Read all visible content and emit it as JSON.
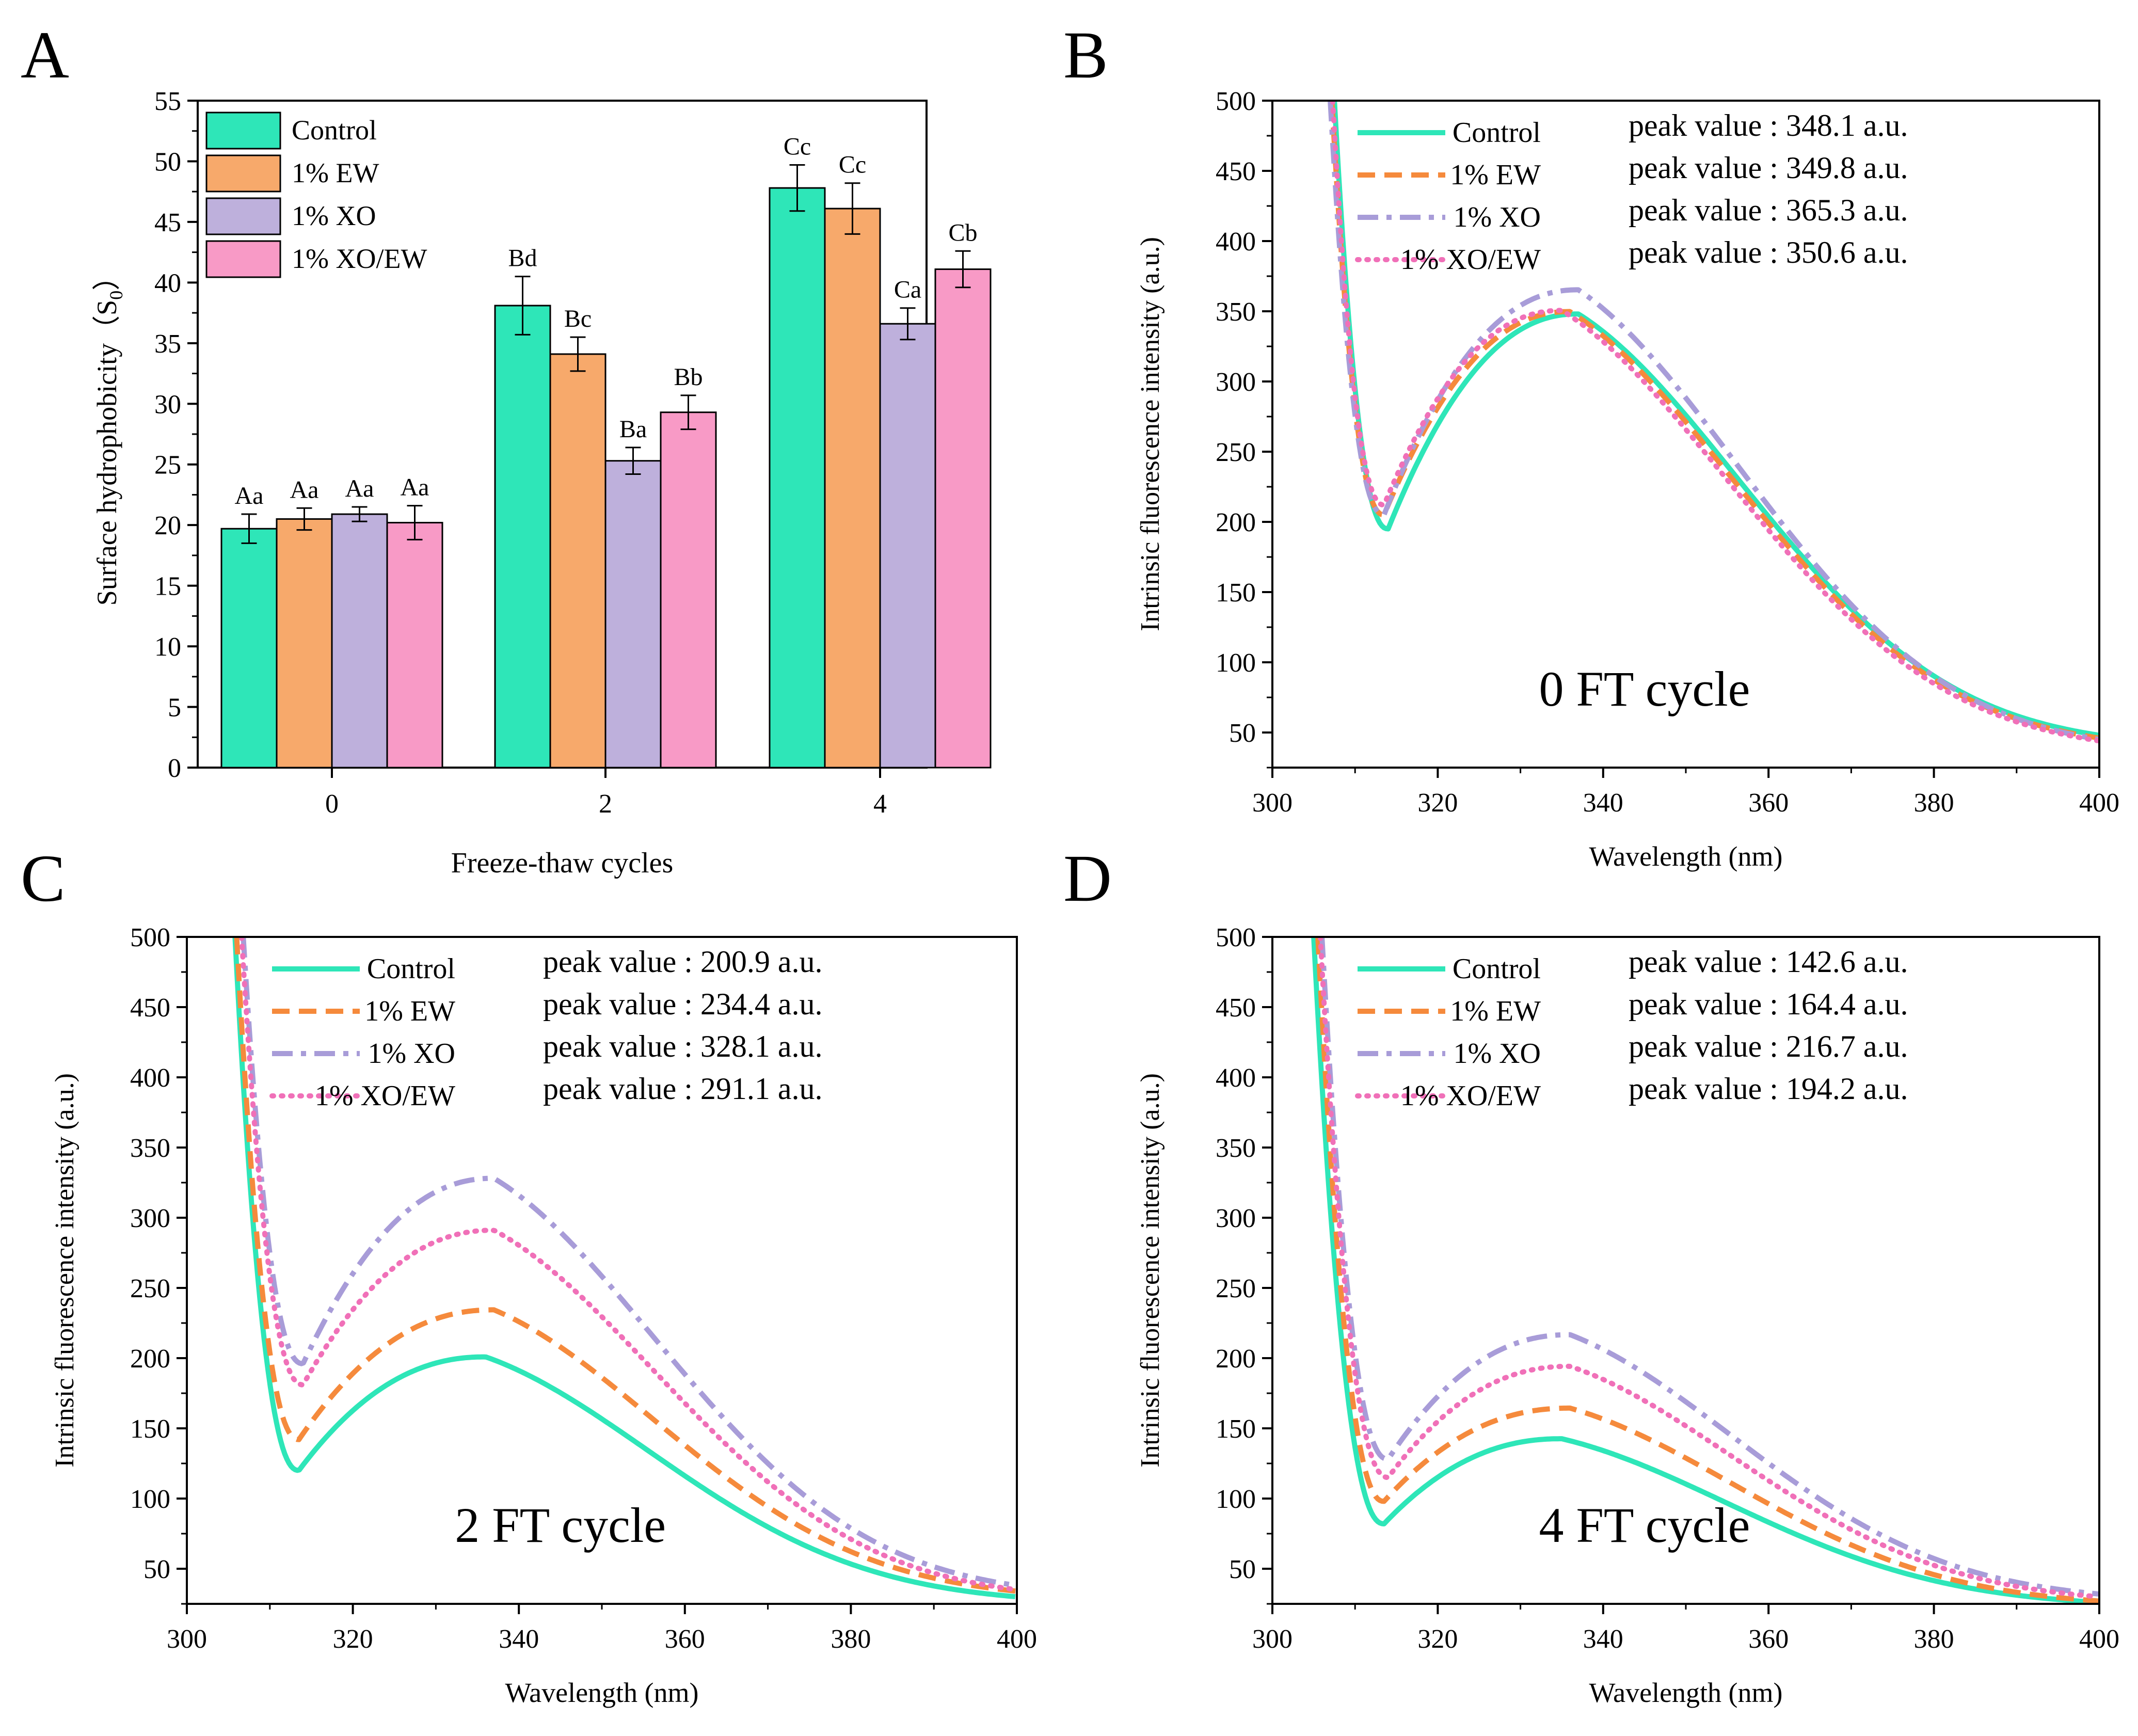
{
  "figure": {
    "panel_letters": [
      "A",
      "B",
      "C",
      "D"
    ]
  },
  "colors": {
    "control": "#2EE6B8",
    "ew": "#F7A96B",
    "xo": "#BEB0DC",
    "xoew": "#F89AC6",
    "ew_line": "#F58A3C",
    "xo_line": "#A89CD8",
    "xoew_line": "#F070B8"
  },
  "chart_data": [
    {
      "panel": "A",
      "type": "bar",
      "title": "",
      "xlabel": "Freeze-thaw cycles",
      "ylabel_main": "Surface hydrophobicity（S",
      "ylabel_sub": "0",
      "ylabel_close": "）",
      "categories": [
        "0",
        "2",
        "4"
      ],
      "ylim": [
        0,
        55
      ],
      "yticks": [
        "0",
        "5",
        "10",
        "15",
        "20",
        "25",
        "30",
        "35",
        "40",
        "45",
        "50",
        "55"
      ],
      "legend_position": "top-left",
      "series": [
        {
          "name": "Control",
          "color_key": "control",
          "values": [
            19.7,
            38.1,
            47.8
          ],
          "errors": [
            1.2,
            2.4,
            1.9
          ],
          "labels": [
            "Aa",
            "Bd",
            "Cc"
          ]
        },
        {
          "name": "1% EW",
          "color_key": "ew",
          "values": [
            20.5,
            34.1,
            46.1
          ],
          "errors": [
            0.9,
            1.4,
            2.1
          ],
          "labels": [
            "Aa",
            "Bc",
            "Cc"
          ]
        },
        {
          "name": "1% XO",
          "color_key": "xo",
          "values": [
            20.9,
            25.3,
            36.6
          ],
          "errors": [
            0.6,
            1.1,
            1.3
          ],
          "labels": [
            "Aa",
            "Ba",
            "Ca"
          ]
        },
        {
          "name": "1% XO/EW",
          "color_key": "xoew",
          "values": [
            20.2,
            29.3,
            41.1
          ],
          "errors": [
            1.4,
            1.4,
            1.5
          ],
          "labels": [
            "Aa",
            "Bb",
            "Cb"
          ]
        }
      ]
    },
    {
      "panel": "B",
      "type": "line",
      "xlabel": "Wavelength (nm)",
      "ylabel": "Intrinsic fluorescence intensity (a.u.)",
      "xlim": [
        300,
        400
      ],
      "ylim": [
        25,
        500
      ],
      "xticks": [
        "300",
        "320",
        "340",
        "360",
        "380",
        "400"
      ],
      "yticks": [
        "50",
        "100",
        "150",
        "200",
        "250",
        "300",
        "350",
        "400",
        "450",
        "500"
      ],
      "annotation": "0 FT cycle",
      "legend_position": "top",
      "series": [
        {
          "name": "Control",
          "style": "solid",
          "color_key": "control",
          "peak_label": "peak value : 348.1 a.u.",
          "x_start": 307.5,
          "min_x": 314,
          "min_y": 195,
          "peak_x": 337,
          "peak_y": 348.1,
          "end_y": 48
        },
        {
          "name": "1% EW",
          "style": "dash",
          "color_key": "ew_line",
          "peak_label": "peak value : 349.8 a.u.",
          "x_start": 307.2,
          "min_x": 313.5,
          "min_y": 205,
          "peak_x": 336,
          "peak_y": 349.8,
          "end_y": 46
        },
        {
          "name": "1% XO",
          "style": "dashdot",
          "color_key": "xo_line",
          "peak_label": "peak value : 365.3 a.u.",
          "x_start": 307.0,
          "min_x": 313.5,
          "min_y": 205,
          "peak_x": 337,
          "peak_y": 365.3,
          "end_y": 45
        },
        {
          "name": "1% XO/EW",
          "style": "dot",
          "color_key": "xoew_line",
          "peak_label": "peak value : 350.6 a.u.",
          "x_start": 307.3,
          "min_x": 313.5,
          "min_y": 212,
          "peak_x": 335,
          "peak_y": 350.6,
          "end_y": 44
        }
      ]
    },
    {
      "panel": "C",
      "type": "line",
      "xlabel": "Wavelength (nm)",
      "ylabel": "Intrinsic fluorescence intensity (a.u.)",
      "xlim": [
        300,
        400
      ],
      "ylim": [
        25,
        500
      ],
      "xticks": [
        "300",
        "320",
        "340",
        "360",
        "380",
        "400"
      ],
      "yticks": [
        "50",
        "100",
        "150",
        "200",
        "250",
        "300",
        "350",
        "400",
        "450",
        "500"
      ],
      "annotation": "2 FT cycle",
      "legend_position": "top",
      "series": [
        {
          "name": "Control",
          "style": "solid",
          "color_key": "control",
          "peak_label": "peak value : 200.9 a.u.",
          "x_start": 305.8,
          "min_x": 313.5,
          "min_y": 120,
          "peak_x": 336,
          "peak_y": 200.9,
          "end_y": 30
        },
        {
          "name": "1% EW",
          "style": "dash",
          "color_key": "ew_line",
          "peak_label": "peak value : 234.4 a.u.",
          "x_start": 306.0,
          "min_x": 313.5,
          "min_y": 142,
          "peak_x": 337,
          "peak_y": 234.4,
          "end_y": 34
        },
        {
          "name": "1% XO",
          "style": "dashdot",
          "color_key": "xo_line",
          "peak_label": "peak value : 328.1 a.u.",
          "x_start": 306.8,
          "min_x": 314,
          "min_y": 196,
          "peak_x": 337,
          "peak_y": 328.1,
          "end_y": 38
        },
        {
          "name": "1% XO/EW",
          "style": "dot",
          "color_key": "xoew_line",
          "peak_label": "peak value : 291.1 a.u.",
          "x_start": 306.6,
          "min_x": 314,
          "min_y": 181,
          "peak_x": 337,
          "peak_y": 291.1,
          "end_y": 35
        }
      ]
    },
    {
      "panel": "D",
      "type": "line",
      "xlabel": "Wavelength (nm)",
      "ylabel": "Intrinsic fluorescence intensity (a.u.)",
      "xlim": [
        300,
        400
      ],
      "ylim": [
        25,
        500
      ],
      "xticks": [
        "300",
        "320",
        "340",
        "360",
        "380",
        "400"
      ],
      "yticks": [
        "50",
        "100",
        "150",
        "200",
        "250",
        "300",
        "350",
        "400",
        "450",
        "500"
      ],
      "annotation": "4 FT cycle",
      "legend_position": "top",
      "series": [
        {
          "name": "Control",
          "style": "solid",
          "color_key": "control",
          "peak_label": "peak value : 142.6 a.u.",
          "x_start": 305.0,
          "min_x": 313.5,
          "min_y": 82,
          "peak_x": 335,
          "peak_y": 142.6,
          "end_y": 26
        },
        {
          "name": "1% EW",
          "style": "dash",
          "color_key": "ew_line",
          "peak_label": "peak value : 164.4 a.u.",
          "x_start": 305.5,
          "min_x": 313.5,
          "min_y": 98,
          "peak_x": 336,
          "peak_y": 164.4,
          "end_y": 27
        },
        {
          "name": "1% XO",
          "style": "dashdot",
          "color_key": "xo_line",
          "peak_label": "peak value : 216.7 a.u.",
          "x_start": 306.0,
          "min_x": 314,
          "min_y": 128,
          "peak_x": 336,
          "peak_y": 216.7,
          "end_y": 32
        },
        {
          "name": "1% XO/EW",
          "style": "dot",
          "color_key": "xoew_line",
          "peak_label": "peak value : 194.2 a.u.",
          "x_start": 305.8,
          "min_x": 314,
          "min_y": 115,
          "peak_x": 336,
          "peak_y": 194.2,
          "end_y": 30
        }
      ]
    }
  ]
}
